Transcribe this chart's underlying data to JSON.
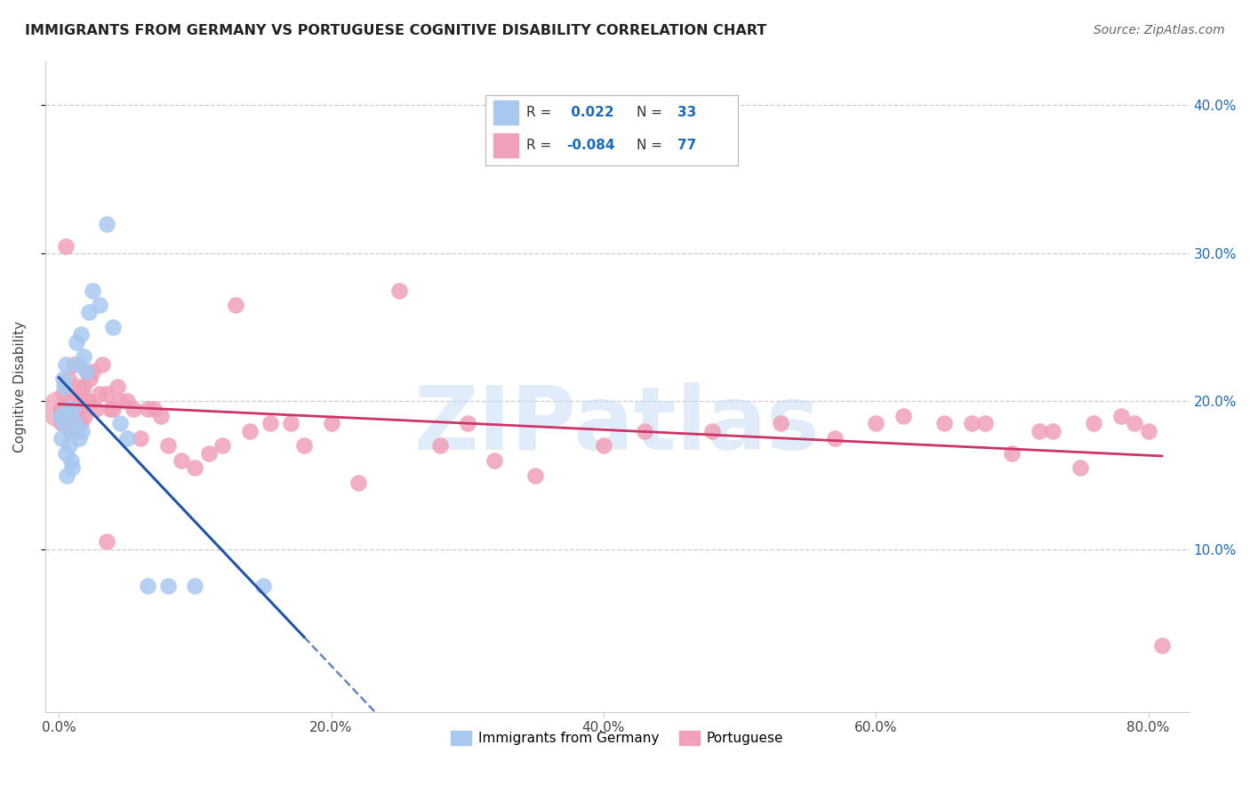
{
  "title": "IMMIGRANTS FROM GERMANY VS PORTUGUESE COGNITIVE DISABILITY CORRELATION CHART",
  "source": "Source: ZipAtlas.com",
  "ylabel": "Cognitive Disability",
  "x_tick_labels": [
    "0.0%",
    "20.0%",
    "40.0%",
    "60.0%",
    "80.0%"
  ],
  "x_tick_values": [
    0.0,
    20.0,
    40.0,
    60.0,
    80.0
  ],
  "y_tick_labels": [
    "10.0%",
    "20.0%",
    "30.0%",
    "40.0%"
  ],
  "y_tick_values": [
    10.0,
    20.0,
    30.0,
    40.0
  ],
  "xlim": [
    -1.0,
    83.0
  ],
  "ylim": [
    -1.0,
    43.0
  ],
  "series1_color": "#a8c8f0",
  "series2_color": "#f0a0b8",
  "series1_label": "Immigrants from Germany",
  "series2_label": "Portuguese",
  "series1_R": "0.022",
  "series1_N": "33",
  "series2_R": "-0.084",
  "series2_N": "77",
  "legend_r_color": "#1a6bbf",
  "trendline1_color": "#2255aa",
  "trendline2_color": "#cc3366",
  "watermark_text": "ZIPatlas",
  "watermark_color": "#c8ddf5",
  "background_color": "#ffffff",
  "grid_color": "#cccccc",
  "series1_x": [
    0.1,
    0.2,
    0.3,
    0.3,
    0.4,
    0.5,
    0.5,
    0.6,
    0.7,
    0.8,
    0.9,
    1.0,
    1.0,
    1.1,
    1.2,
    1.3,
    1.4,
    1.5,
    1.6,
    1.7,
    1.8,
    2.0,
    2.2,
    2.5,
    3.0,
    3.5,
    4.0,
    4.5,
    5.0,
    6.5,
    8.0,
    10.0,
    15.0
  ],
  "series1_y": [
    19.0,
    17.5,
    21.5,
    18.5,
    21.0,
    16.5,
    22.5,
    15.0,
    19.5,
    17.0,
    16.0,
    19.5,
    15.5,
    18.0,
    18.5,
    24.0,
    22.5,
    17.5,
    24.5,
    18.0,
    23.0,
    22.0,
    26.0,
    27.5,
    26.5,
    32.0,
    25.0,
    18.5,
    17.5,
    7.5,
    7.5,
    7.5,
    7.5
  ],
  "series2_x": [
    0.1,
    0.2,
    0.3,
    0.4,
    0.5,
    0.5,
    0.6,
    0.7,
    0.8,
    0.9,
    1.0,
    1.0,
    1.1,
    1.2,
    1.3,
    1.4,
    1.5,
    1.6,
    1.7,
    1.8,
    1.9,
    2.0,
    2.1,
    2.2,
    2.3,
    2.5,
    2.7,
    3.0,
    3.2,
    3.5,
    3.8,
    4.0,
    4.3,
    4.5,
    5.0,
    5.5,
    6.0,
    6.5,
    7.0,
    7.5,
    8.0,
    9.0,
    10.0,
    11.0,
    12.0,
    13.0,
    14.0,
    15.5,
    17.0,
    18.0,
    20.0,
    22.0,
    25.0,
    28.0,
    30.0,
    32.0,
    35.0,
    40.0,
    43.0,
    48.0,
    53.0,
    57.0,
    60.0,
    62.0,
    65.0,
    67.0,
    68.0,
    70.0,
    72.0,
    73.0,
    75.0,
    76.0,
    78.0,
    79.0,
    80.0,
    81.0,
    3.5
  ],
  "series2_y": [
    19.5,
    18.5,
    20.5,
    19.0,
    30.5,
    18.5,
    19.0,
    21.5,
    18.0,
    19.5,
    19.0,
    18.5,
    22.5,
    19.5,
    20.5,
    21.0,
    19.5,
    18.5,
    20.5,
    21.0,
    19.0,
    20.0,
    22.0,
    20.0,
    21.5,
    22.0,
    19.5,
    20.5,
    22.5,
    20.5,
    19.5,
    19.5,
    21.0,
    20.0,
    20.0,
    19.5,
    17.5,
    19.5,
    19.5,
    19.0,
    17.0,
    16.0,
    15.5,
    16.5,
    17.0,
    26.5,
    18.0,
    18.5,
    18.5,
    17.0,
    18.5,
    14.5,
    27.5,
    17.0,
    18.5,
    16.0,
    15.0,
    17.0,
    18.0,
    18.0,
    18.5,
    17.5,
    18.5,
    19.0,
    18.5,
    18.5,
    18.5,
    16.5,
    18.0,
    18.0,
    15.5,
    18.5,
    19.0,
    18.5,
    18.0,
    3.5,
    10.5
  ]
}
